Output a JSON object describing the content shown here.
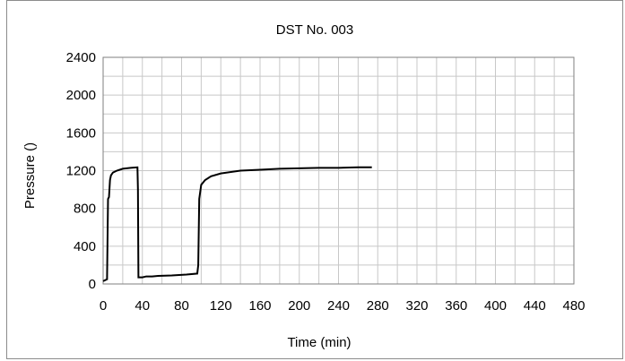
{
  "chart_data": {
    "type": "line",
    "title": "DST No. 003",
    "xlabel": "Time (min)",
    "ylabel": "Pressure ()",
    "xlim": [
      0,
      480
    ],
    "ylim": [
      0,
      2400
    ],
    "x_ticks": [
      "0",
      "40",
      "80",
      "120",
      "160",
      "200",
      "240",
      "280",
      "320",
      "360",
      "400",
      "440",
      "480"
    ],
    "y_ticks": [
      "0",
      "400",
      "800",
      "1200",
      "1600",
      "2000",
      "2400"
    ],
    "grid": true,
    "line_color": "#000000",
    "grid_color": "#c8c8c8",
    "series": [
      {
        "values": [
          [
            0,
            30
          ],
          [
            4,
            50
          ],
          [
            5,
            900
          ],
          [
            6,
            920
          ],
          [
            7,
            1100
          ],
          [
            8,
            1150
          ],
          [
            10,
            1180
          ],
          [
            14,
            1200
          ],
          [
            20,
            1220
          ],
          [
            28,
            1230
          ],
          [
            35,
            1235
          ],
          [
            35.5,
            1000
          ],
          [
            36,
            70
          ],
          [
            40,
            70
          ],
          [
            44,
            80
          ],
          [
            50,
            80
          ],
          [
            56,
            85
          ],
          [
            70,
            90
          ],
          [
            85,
            100
          ],
          [
            96,
            110
          ],
          [
            97,
            200
          ],
          [
            98,
            900
          ],
          [
            100,
            1050
          ],
          [
            104,
            1100
          ],
          [
            110,
            1140
          ],
          [
            120,
            1170
          ],
          [
            140,
            1200
          ],
          [
            160,
            1210
          ],
          [
            180,
            1220
          ],
          [
            200,
            1225
          ],
          [
            220,
            1230
          ],
          [
            240,
            1230
          ],
          [
            260,
            1235
          ],
          [
            274,
            1235
          ]
        ]
      }
    ]
  }
}
